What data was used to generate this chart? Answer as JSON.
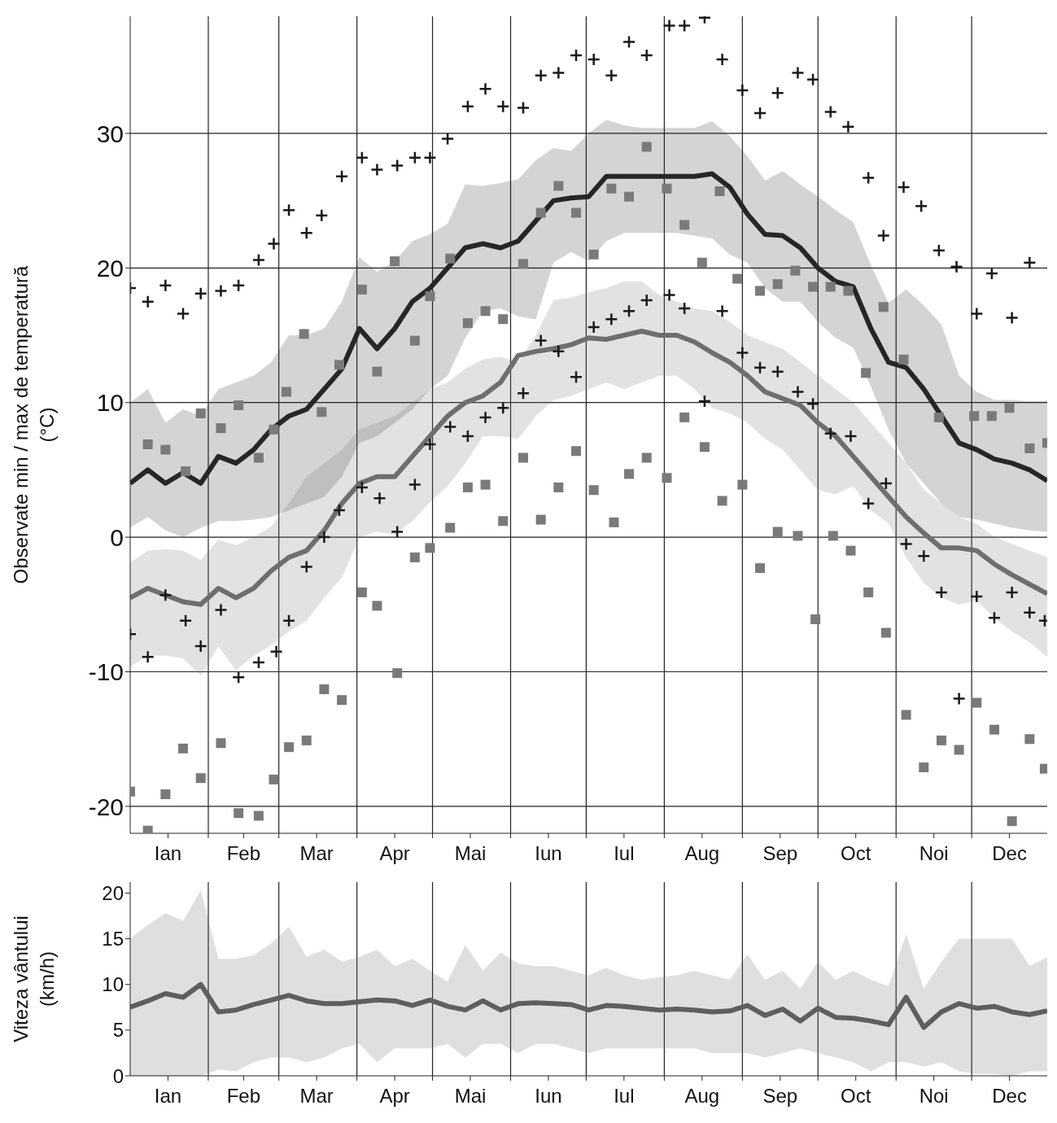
{
  "chart_data": [
    {
      "type": "line",
      "ylabel": "Observate min / max de temperatură\n(°C)",
      "x": [
        "--01-01",
        "--01-08",
        "--01-15",
        "--01-22",
        "--01-29",
        "--02-05",
        "--02-12",
        "--02-19",
        "--02-26",
        "--03-05",
        "--03-12",
        "--03-19",
        "--03-26",
        "--04-02",
        "--04-09",
        "--04-16",
        "--04-23",
        "--04-30",
        "--05-07",
        "--05-14",
        "--05-21",
        "--05-28",
        "--06-04",
        "--06-11",
        "--06-18",
        "--06-25",
        "--07-02",
        "--07-09",
        "--07-16",
        "--07-23",
        "--07-30",
        "--08-06",
        "--08-13",
        "--08-20",
        "--08-27",
        "--09-03",
        "--09-10",
        "--09-17",
        "--09-24",
        "--10-01",
        "--10-08",
        "--10-15",
        "--10-22",
        "--10-29",
        "--11-05",
        "--11-12",
        "--11-19",
        "--11-26",
        "--12-03",
        "--12-10",
        "--12-17",
        "--12-24",
        "--12-31"
      ],
      "xlim": [
        "--01-01",
        "--12-31"
      ],
      "xticks": [
        {
          "value": "--01-16",
          "label": "Ian"
        },
        {
          "value": "--02-01",
          "label": null
        },
        {
          "value": "--02-15",
          "label": "Feb"
        },
        {
          "value": "--03-01",
          "label": null
        },
        {
          "value": "--03-16",
          "label": "Mar"
        },
        {
          "value": "--04-01",
          "label": null
        },
        {
          "value": "--04-16",
          "label": "Apr"
        },
        {
          "value": "--05-01",
          "label": null
        },
        {
          "value": "--05-16",
          "label": "Mai"
        },
        {
          "value": "--06-01",
          "label": null
        },
        {
          "value": "--06-16",
          "label": "Iun"
        },
        {
          "value": "--07-01",
          "label": null
        },
        {
          "value": "--07-16",
          "label": "Iul"
        },
        {
          "value": "--08-01",
          "label": null
        },
        {
          "value": "--08-16",
          "label": "Aug"
        },
        {
          "value": "--09-01",
          "label": null
        },
        {
          "value": "--09-16",
          "label": "Sep"
        },
        {
          "value": "--10-01",
          "label": null
        },
        {
          "value": "--10-16",
          "label": "Oct"
        },
        {
          "value": "--11-01",
          "label": null
        },
        {
          "value": "--11-16",
          "label": "Noi"
        },
        {
          "value": "--12-01",
          "label": null
        },
        {
          "value": "--12-16",
          "label": "Dec"
        }
      ],
      "ylim": [
        -22,
        38.7
      ],
      "yticks": [
        -20,
        -10,
        0,
        10,
        20,
        30
      ],
      "grid": true,
      "series": [
        {
          "color": "#262626",
          "values": [
            4.0,
            5.0,
            4.0,
            4.8,
            4.0,
            6.0,
            5.5,
            6.5,
            8.0,
            9.0,
            9.5,
            11.0,
            12.5,
            15.5,
            14.0,
            15.5,
            17.5,
            18.5,
            20.0,
            21.5,
            21.8,
            21.5,
            22.0,
            23.5,
            25.0,
            25.2,
            25.3,
            26.8,
            26.8,
            26.8,
            26.8,
            26.8,
            26.8,
            27.0,
            26.0,
            24.0,
            22.5,
            22.4,
            21.5,
            20.0,
            19.0,
            18.6,
            15.5,
            13.0,
            12.6,
            11.0,
            9.0,
            7.0,
            6.5,
            5.8,
            5.5,
            5.0,
            4.2
          ],
          "upper": [
            10.0,
            11.0,
            8.5,
            9.5,
            9.0,
            11.0,
            11.5,
            12.0,
            13.0,
            15.0,
            15.0,
            15.5,
            17.5,
            20.8,
            19.7,
            20.5,
            22.0,
            22.5,
            23.3,
            26.2,
            26.1,
            26.3,
            26.6,
            28.0,
            28.9,
            28.7,
            30.0,
            31.0,
            30.6,
            30.4,
            30.4,
            30.4,
            30.4,
            30.9,
            29.8,
            28.3,
            26.5,
            27.2,
            26.2,
            25.3,
            24.3,
            23.4,
            20.2,
            17.4,
            18.4,
            17.2,
            15.8,
            12.0,
            10.8,
            10.2,
            10.2,
            10.1,
            10.1
          ],
          "lower": [
            0.7,
            1.5,
            0.5,
            0.0,
            0.7,
            1.2,
            1.2,
            1.3,
            1.5,
            2.0,
            2.5,
            3.0,
            4.5,
            7.0,
            7.5,
            8.5,
            9.5,
            11.0,
            12.0,
            14.8,
            16.8,
            17.0,
            16.4,
            16.2,
            20.4,
            21.2,
            20.5,
            22.0,
            22.6,
            22.6,
            22.6,
            22.6,
            22.4,
            22.2,
            21.0,
            20.4,
            18.5,
            17.5,
            17.5,
            16.0,
            14.8,
            14.1,
            11.2,
            8.0,
            5.5,
            4.0,
            2.5,
            1.5,
            1.3,
            1.0,
            0.7,
            0.5,
            0.4
          ]
        },
        {
          "color": "#6e6e6e",
          "values": [
            -4.5,
            -3.8,
            -4.3,
            -4.8,
            -5.0,
            -3.8,
            -4.5,
            -3.8,
            -2.5,
            -1.5,
            -1.0,
            0.5,
            2.5,
            4.0,
            4.5,
            4.5,
            6.0,
            7.5,
            9.0,
            10.0,
            10.5,
            11.5,
            13.5,
            13.8,
            14.0,
            14.3,
            14.8,
            14.7,
            15.0,
            15.3,
            15.0,
            15.0,
            14.5,
            13.7,
            13.0,
            12.0,
            10.8,
            10.3,
            9.8,
            8.5,
            7.5,
            6.0,
            4.5,
            3.0,
            1.5,
            0.3,
            -0.8,
            -0.8,
            -1.0,
            -2.0,
            -2.8,
            -3.5,
            -4.2
          ],
          "upper": [
            -1.9,
            -1.0,
            -0.9,
            -1.0,
            -1.7,
            -0.2,
            -0.6,
            0.0,
            0.8,
            2.5,
            4.5,
            5.5,
            6.5,
            8.0,
            8.5,
            9.0,
            10.0,
            11.0,
            11.5,
            12.5,
            13.2,
            13.4,
            13.0,
            15.0,
            17.6,
            17.8,
            18.2,
            18.5,
            19.0,
            19.0,
            18.0,
            17.5,
            17.0,
            16.8,
            16.0,
            15.0,
            14.5,
            14.0,
            13.0,
            12.0,
            11.0,
            10.0,
            8.5,
            7.0,
            5.5,
            3.5,
            2.5,
            1.5,
            1.0,
            0.0,
            -0.5,
            -1.0,
            -1.5
          ],
          "lower": [
            -9.6,
            -8.8,
            -8.8,
            -9.0,
            -10.3,
            -8.1,
            -9.9,
            -8.8,
            -8.0,
            -7.0,
            -6.2,
            -4.5,
            -3.0,
            0.0,
            0.4,
            0.2,
            1.2,
            2.6,
            3.8,
            5.5,
            7.5,
            7.5,
            7.3,
            9.0,
            10.2,
            10.5,
            11.0,
            11.5,
            11.0,
            11.5,
            12.0,
            12.0,
            11.0,
            9.6,
            9.2,
            8.5,
            7.3,
            6.5,
            5.0,
            3.5,
            3.2,
            3.8,
            2.0,
            1.0,
            -1.5,
            -3.4,
            -4.5,
            -5.0,
            -4.7,
            -6.0,
            -7.0,
            -7.8,
            -8.9
          ]
        },
        {
          "type": "scatter",
          "marker": "cross",
          "color": "#1a1a1a",
          "x": [
            "--01-01",
            "--01-08",
            "--01-15",
            "--01-22",
            "--01-29",
            "--02-06",
            "--02-13",
            "--02-21",
            "--02-27",
            "--03-05",
            "--03-12",
            "--03-18",
            "--03-26",
            "--04-03",
            "--04-09",
            "--04-17",
            "--04-24",
            "--04-30",
            "--05-07",
            "--05-15",
            "--05-22",
            "--05-29",
            "--06-06",
            "--06-13",
            "--06-20",
            "--06-27",
            "--07-04",
            "--07-11",
            "--07-18",
            "--07-25",
            "--08-03",
            "--08-09",
            "--08-17",
            "--08-24",
            "--09-01",
            "--09-08",
            "--09-15",
            "--09-23",
            "--09-29",
            "--10-06",
            "--10-13",
            "--10-21",
            "--10-27",
            "--11-04",
            "--11-11",
            "--11-18",
            "--11-25",
            "--12-03",
            "--12-09",
            "--12-17",
            "--12-24",
            "--01-01",
            "--01-08",
            "--01-15",
            "--01-23",
            "--01-29",
            "--02-06",
            "--02-13",
            "--02-21",
            "--02-28",
            "--03-05",
            "--03-12",
            "--03-19",
            "--03-25",
            "--04-03",
            "--04-10",
            "--04-17",
            "--04-24",
            "--04-30",
            "--05-08",
            "--05-15",
            "--05-22",
            "--05-29",
            "--06-06",
            "--06-13",
            "--06-20",
            "--06-27",
            "--07-04",
            "--07-11",
            "--07-18",
            "--07-25",
            "--08-03",
            "--08-09",
            "--08-17",
            "--08-24",
            "--09-01",
            "--09-08",
            "--09-15",
            "--09-23",
            "--09-29",
            "--10-06",
            "--10-14",
            "--10-21",
            "--10-28",
            "--11-05",
            "--11-12",
            "--11-19",
            "--11-26",
            "--12-03",
            "--12-10",
            "--12-17",
            "--12-24",
            "--12-30"
          ],
          "values": [
            18.5,
            17.5,
            18.7,
            16.6,
            18.1,
            18.3,
            18.7,
            20.6,
            21.8,
            24.3,
            22.6,
            23.9,
            26.8,
            28.2,
            27.3,
            27.6,
            28.2,
            28.2,
            29.6,
            32.0,
            33.3,
            32.0,
            31.9,
            34.3,
            34.5,
            35.8,
            35.5,
            34.3,
            36.8,
            35.8,
            38.0,
            38.0,
            38.6,
            35.5,
            33.2,
            31.5,
            33.0,
            34.5,
            34.0,
            31.6,
            30.5,
            26.7,
            22.4,
            26.0,
            24.6,
            21.3,
            20.1,
            16.6,
            19.6,
            16.3,
            20.4,
            -7.2,
            -8.9,
            -4.3,
            -6.2,
            -8.1,
            -5.4,
            -10.4,
            -9.3,
            -8.5,
            -6.2,
            -2.2,
            0.0,
            2.0,
            3.7,
            2.9,
            0.4,
            3.9,
            6.9,
            8.2,
            7.5,
            8.9,
            9.6,
            10.7,
            14.6,
            13.8,
            11.9,
            15.6,
            16.2,
            16.8,
            17.6,
            18.0,
            17.0,
            10.1,
            16.8,
            13.7,
            12.6,
            12.3,
            10.8,
            9.9,
            7.7,
            7.5,
            2.5,
            4.0,
            -0.5,
            -1.4,
            -4.1,
            -12.0,
            -4.4,
            -6.0,
            -4.1,
            -5.6,
            -6.2
          ]
        },
        {
          "type": "scatter",
          "marker": "square",
          "color": "#7a7a7a",
          "x": [
            "--01-08",
            "--01-15",
            "--01-23",
            "--01-29",
            "--02-06",
            "--02-13",
            "--02-21",
            "--02-27",
            "--03-04",
            "--03-11",
            "--03-18",
            "--03-25",
            "--04-03",
            "--04-09",
            "--04-16",
            "--04-24",
            "--04-30",
            "--05-08",
            "--05-15",
            "--05-22",
            "--05-29",
            "--06-06",
            "--06-13",
            "--06-20",
            "--06-27",
            "--07-04",
            "--07-11",
            "--07-18",
            "--07-25",
            "--08-02",
            "--08-09",
            "--08-16",
            "--08-23",
            "--08-30",
            "--09-08",
            "--09-15",
            "--09-22",
            "--09-29",
            "--10-06",
            "--10-13",
            "--10-20",
            "--10-27",
            "--11-04",
            "--11-18",
            "--12-02",
            "--12-09",
            "--12-16",
            "--12-24",
            "--12-31",
            "--01-01",
            "--01-08",
            "--01-15",
            "--01-22",
            "--01-29",
            "--02-06",
            "--02-13",
            "--02-21",
            "--02-27",
            "--03-05",
            "--03-12",
            "--03-19",
            "--03-26",
            "--04-03",
            "--04-09",
            "--04-17",
            "--04-24",
            "--04-30",
            "--05-08",
            "--05-15",
            "--05-22",
            "--05-29",
            "--06-06",
            "--06-13",
            "--06-20",
            "--06-27",
            "--07-04",
            "--07-12",
            "--07-18",
            "--07-25",
            "--08-02",
            "--08-09",
            "--08-17",
            "--08-24",
            "--09-01",
            "--09-08",
            "--09-15",
            "--09-23",
            "--09-30",
            "--10-07",
            "--10-14",
            "--10-21",
            "--10-28",
            "--11-05",
            "--11-12",
            "--11-19",
            "--11-26",
            "--12-03",
            "--12-10",
            "--12-17",
            "--12-24",
            "--12-30"
          ],
          "values": [
            6.9,
            6.5,
            4.9,
            9.2,
            8.1,
            9.8,
            5.9,
            8.0,
            10.8,
            15.1,
            9.3,
            12.8,
            18.4,
            12.3,
            20.5,
            14.6,
            17.9,
            20.7,
            15.9,
            16.8,
            16.2,
            20.3,
            24.1,
            26.1,
            24.1,
            21.0,
            25.9,
            25.3,
            29.0,
            25.9,
            23.2,
            20.4,
            25.7,
            19.2,
            18.3,
            18.8,
            19.8,
            18.6,
            18.6,
            18.3,
            12.2,
            17.1,
            13.2,
            8.9,
            9.0,
            9.0,
            9.6,
            6.6,
            7.0,
            -18.9,
            -21.8,
            -19.1,
            -15.7,
            -17.9,
            -15.3,
            -20.5,
            -20.7,
            -18.0,
            -15.6,
            -15.1,
            -11.3,
            -12.1,
            -4.1,
            -5.1,
            -10.1,
            -1.5,
            -0.8,
            0.7,
            3.7,
            3.9,
            1.2,
            5.9,
            1.3,
            3.7,
            6.4,
            3.5,
            1.1,
            4.7,
            5.9,
            4.4,
            8.9,
            6.7,
            2.7,
            3.9,
            -2.3,
            0.4,
            0.1,
            -6.1,
            0.1,
            -1.0,
            -4.1,
            -7.1,
            -13.2,
            -17.1,
            -15.1,
            -15.8,
            -12.3,
            -14.3,
            -21.1,
            -15.0,
            -17.2
          ]
        }
      ]
    },
    {
      "type": "line",
      "ylabel": "Viteza vântului\n(km/h)",
      "x": [
        "--01-01",
        "--01-08",
        "--01-15",
        "--01-22",
        "--01-29",
        "--02-05",
        "--02-12",
        "--02-19",
        "--02-26",
        "--03-05",
        "--03-12",
        "--03-19",
        "--03-26",
        "--04-02",
        "--04-09",
        "--04-16",
        "--04-23",
        "--04-30",
        "--05-07",
        "--05-14",
        "--05-21",
        "--05-28",
        "--06-04",
        "--06-11",
        "--06-18",
        "--06-25",
        "--07-02",
        "--07-09",
        "--07-16",
        "--07-23",
        "--07-30",
        "--08-06",
        "--08-13",
        "--08-20",
        "--08-27",
        "--09-03",
        "--09-10",
        "--09-17",
        "--09-24",
        "--10-01",
        "--10-08",
        "--10-15",
        "--10-22",
        "--10-29",
        "--11-05",
        "--11-12",
        "--11-19",
        "--11-26",
        "--12-03",
        "--12-10",
        "--12-17",
        "--12-24",
        "--12-31"
      ],
      "xlim": [
        "--01-01",
        "--12-31"
      ],
      "xticks": [
        {
          "value": "--01-16",
          "label": "Ian"
        },
        {
          "value": "--02-01",
          "label": null
        },
        {
          "value": "--02-15",
          "label": "Feb"
        },
        {
          "value": "--03-01",
          "label": null
        },
        {
          "value": "--03-16",
          "label": "Mar"
        },
        {
          "value": "--04-01",
          "label": null
        },
        {
          "value": "--04-16",
          "label": "Apr"
        },
        {
          "value": "--05-01",
          "label": null
        },
        {
          "value": "--05-16",
          "label": "Mai"
        },
        {
          "value": "--06-01",
          "label": null
        },
        {
          "value": "--06-16",
          "label": "Iun"
        },
        {
          "value": "--07-01",
          "label": null
        },
        {
          "value": "--07-16",
          "label": "Iul"
        },
        {
          "value": "--08-01",
          "label": null
        },
        {
          "value": "--08-16",
          "label": "Aug"
        },
        {
          "value": "--09-01",
          "label": null
        },
        {
          "value": "--09-16",
          "label": "Sep"
        },
        {
          "value": "--10-01",
          "label": null
        },
        {
          "value": "--10-16",
          "label": "Oct"
        },
        {
          "value": "--11-01",
          "label": null
        },
        {
          "value": "--11-16",
          "label": "Noi"
        },
        {
          "value": "--12-01",
          "label": null
        },
        {
          "value": "--12-16",
          "label": "Dec"
        }
      ],
      "ylim": [
        0,
        21.2
      ],
      "yticks": [
        0,
        5,
        10,
        15,
        20
      ],
      "grid": "x",
      "series": [
        {
          "color": "#5e5e5e",
          "values": [
            7.5,
            8.2,
            9.0,
            8.6,
            10.0,
            7.0,
            7.2,
            7.8,
            8.3,
            8.8,
            8.2,
            7.9,
            7.9,
            8.1,
            8.3,
            8.2,
            7.7,
            8.3,
            7.6,
            7.2,
            8.2,
            7.2,
            7.9,
            8.0,
            7.9,
            7.8,
            7.2,
            7.7,
            7.6,
            7.4,
            7.2,
            7.3,
            7.2,
            7.0,
            7.1,
            7.7,
            6.6,
            7.3,
            6.0,
            7.4,
            6.4,
            6.3,
            6.0,
            5.6,
            8.6,
            5.3,
            7.0,
            7.9,
            7.4,
            7.6,
            7.0,
            6.7,
            7.1
          ],
          "upper": [
            15,
            16.5,
            17.8,
            17,
            20.3,
            12.8,
            12.8,
            13.2,
            14.5,
            16.3,
            13,
            13.8,
            12.5,
            13,
            13.8,
            12,
            12.8,
            11.5,
            10.3,
            14.3,
            11.5,
            13.5,
            12.3,
            12,
            12,
            11.5,
            11,
            11.8,
            11,
            10.5,
            10.8,
            11,
            11.5,
            11,
            10.5,
            13.3,
            10.5,
            11.5,
            9.5,
            12.5,
            10.5,
            11.5,
            10.5,
            9.8,
            15.5,
            9.5,
            12.5,
            15,
            15,
            15,
            15,
            12,
            13
          ],
          "lower": [
            0,
            0,
            0,
            0,
            0,
            0.7,
            0.5,
            1.5,
            2.0,
            2.0,
            1.5,
            2.0,
            3.0,
            3.5,
            1.5,
            3.0,
            3.0,
            3.0,
            3.5,
            2.0,
            3.5,
            3.5,
            2.5,
            3.5,
            3.5,
            3.0,
            2.5,
            3.0,
            3.0,
            3.0,
            3.0,
            3.0,
            3.0,
            2.5,
            2.5,
            2.5,
            2.0,
            2.5,
            3.0,
            2.5,
            2.0,
            1.5,
            0.5,
            1.5,
            1.5,
            1.0,
            1.5,
            0.5,
            0.2,
            0.2,
            0,
            0.5,
            0.5
          ]
        }
      ]
    }
  ]
}
